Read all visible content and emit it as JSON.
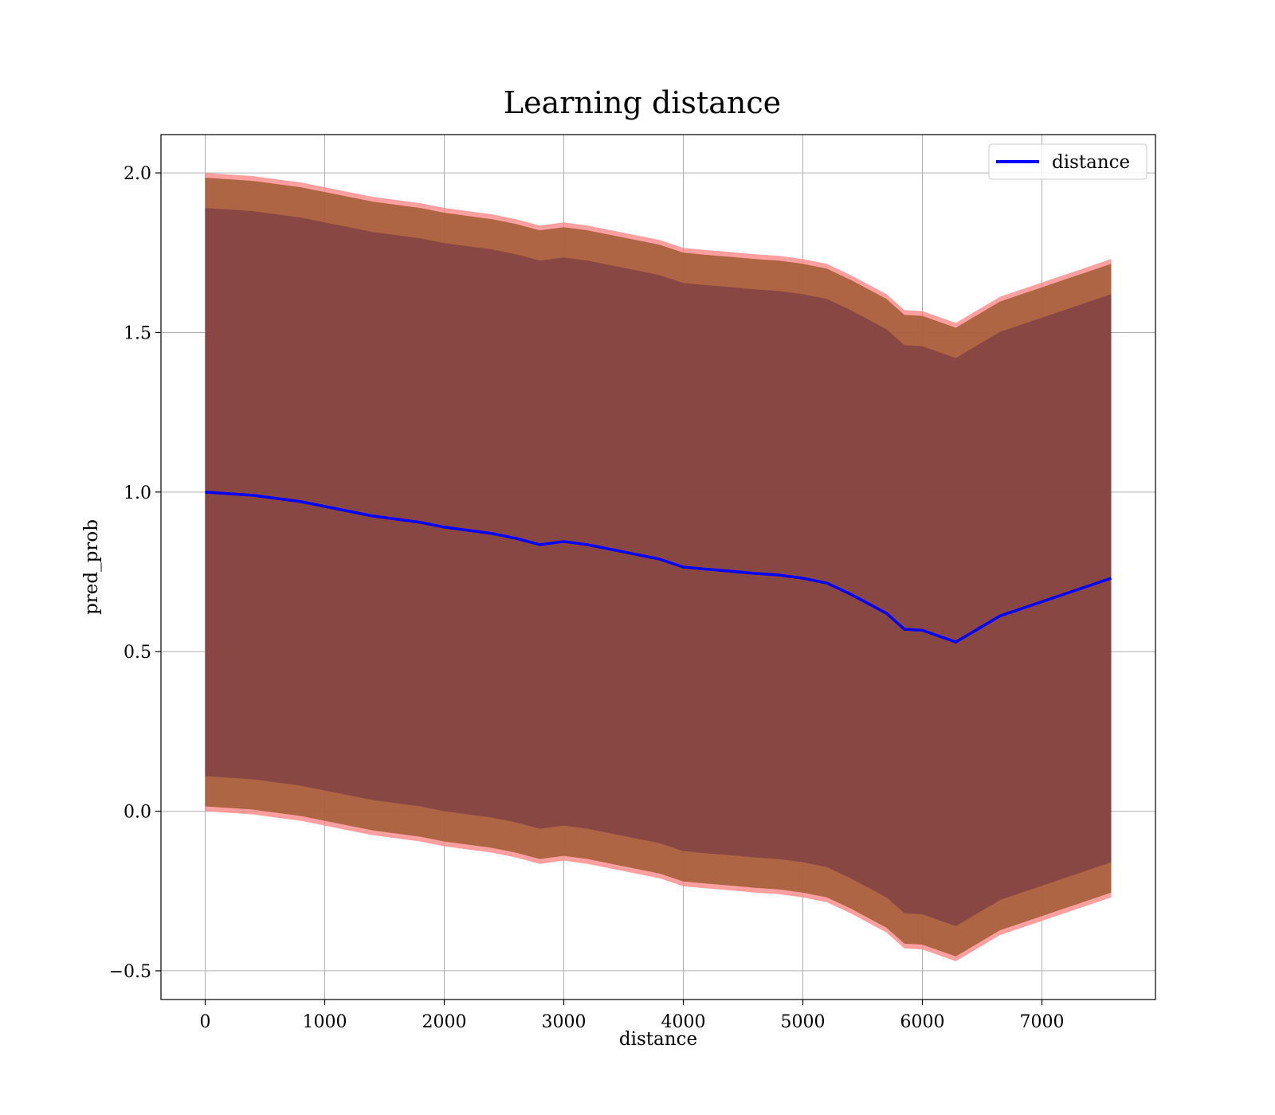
{
  "chart_data": {
    "type": "line",
    "title": "Learning distance",
    "xlabel": "distance",
    "ylabel": "pred_prob",
    "xlim": [
      -370,
      7950
    ],
    "ylim": [
      -0.59,
      2.12
    ],
    "xticks": [
      0,
      1000,
      2000,
      3000,
      4000,
      5000,
      6000,
      7000
    ],
    "xtick_labels": [
      "0",
      "1000",
      "2000",
      "3000",
      "4000",
      "5000",
      "6000",
      "7000"
    ],
    "yticks": [
      -0.5,
      0.0,
      0.5,
      1.0,
      1.5,
      2.0
    ],
    "ytick_labels": [
      "−0.5",
      "0.0",
      "0.5",
      "1.0",
      "1.5",
      "2.0"
    ],
    "grid": true,
    "legend_position": "top-right",
    "colors": {
      "line": "#0000ff",
      "inner_band": "#6b2f44",
      "outer_band": "#a05a32",
      "edge_band": "#ff7f7f"
    },
    "series": [
      {
        "name": "distance",
        "x": [
          0,
          200,
          400,
          600,
          800,
          1000,
          1200,
          1400,
          1600,
          1800,
          2000,
          2200,
          2400,
          2600,
          2800,
          3000,
          3200,
          3400,
          3600,
          3800,
          4000,
          4200,
          4400,
          4600,
          4800,
          5000,
          5200,
          5400,
          5600,
          5700,
          5850,
          6000,
          6280,
          6650,
          7580
        ],
        "y": [
          1.0,
          0.995,
          0.99,
          0.98,
          0.97,
          0.955,
          0.94,
          0.925,
          0.915,
          0.905,
          0.89,
          0.88,
          0.87,
          0.855,
          0.835,
          0.845,
          0.835,
          0.82,
          0.805,
          0.79,
          0.765,
          0.758,
          0.752,
          0.745,
          0.74,
          0.73,
          0.715,
          0.68,
          0.64,
          0.62,
          0.57,
          0.567,
          0.53,
          0.612,
          0.73
        ]
      }
    ],
    "bands": {
      "inner_halfwidth": 0.89,
      "outer_halfwidth": 0.985,
      "edge_halfwidth": 1.0
    }
  }
}
